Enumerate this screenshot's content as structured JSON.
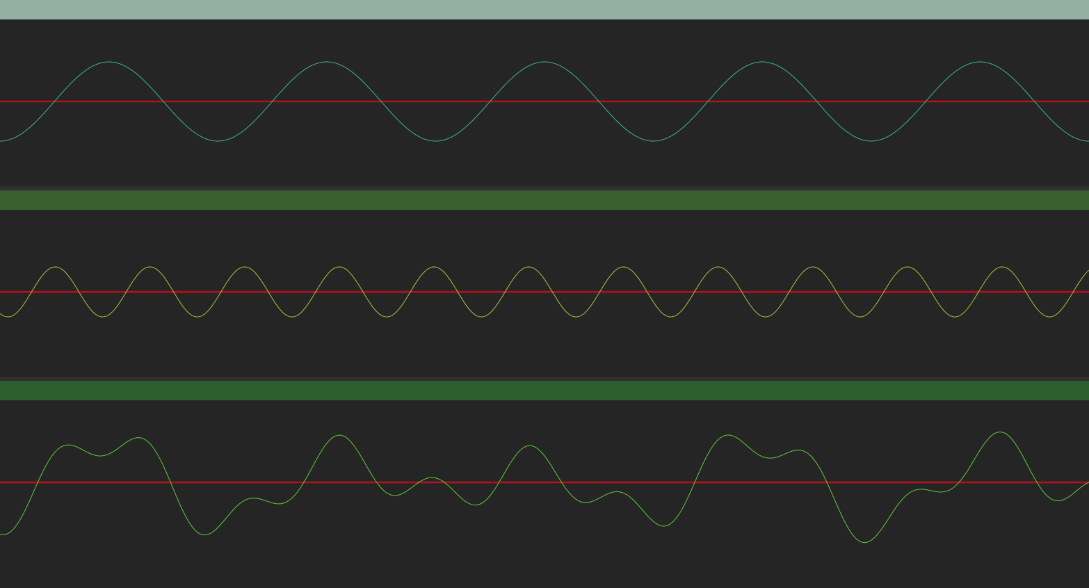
{
  "panels": [
    {
      "id": "panel-1",
      "title": "",
      "header_color": "#94afa4",
      "wave_color": "#3fb3a0",
      "baseline_color": "#b5101c",
      "signal": {
        "components": [
          {
            "amplitude": 1.0,
            "cycles": 5,
            "phase_deg": 180
          }
        ]
      },
      "amplitude_scale": 57
    },
    {
      "id": "panel-2",
      "title": "",
      "header_color": "#3a5f2f",
      "wave_color": "#a6c83a",
      "baseline_color": "#b5101c",
      "signal": {
        "components": [
          {
            "amplitude": 1.0,
            "cycles": 11.5,
            "phase_deg": 150
          }
        ]
      },
      "amplitude_scale": 36
    },
    {
      "id": "panel-3",
      "title": "",
      "header_color": "#2d5e2d",
      "wave_color": "#5fcc3a",
      "baseline_color": "#b5101c",
      "signal": {
        "components": [
          {
            "amplitude": 0.55,
            "cycles": 5,
            "phase_deg": 180
          },
          {
            "amplitude": 0.35,
            "cycles": 11.5,
            "phase_deg": 150
          },
          {
            "amplitude": 0.3,
            "cycles": 3.4,
            "phase_deg": 250
          }
        ]
      },
      "amplitude_scale": 78
    }
  ]
}
